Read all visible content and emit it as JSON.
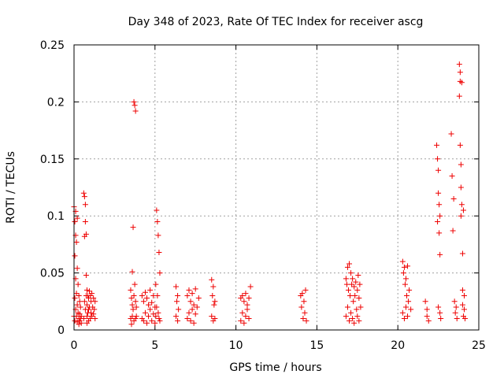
{
  "chart_data": {
    "type": "scatter",
    "title": "Day 348 of 2023, Rate Of TEC Index for receiver ascg",
    "xlabel": "GPS time / hours",
    "ylabel": "ROTI / TECUs",
    "xlim": [
      0,
      25
    ],
    "ylim": [
      0,
      0.25
    ],
    "xticks": [
      0,
      5,
      10,
      15,
      20,
      25
    ],
    "yticks": [
      0,
      0.05,
      0.1,
      0.15,
      0.2,
      0.25
    ],
    "xtick_labels": [
      "0",
      "5",
      "10",
      "15",
      "20",
      "25"
    ],
    "ytick_labels": [
      "0",
      "0.05",
      "0.1",
      "0.15",
      "0.2",
      "0.25"
    ],
    "grid": true,
    "marker": "+",
    "color": "#ee0000",
    "series": [
      {
        "name": "ROTI",
        "x": [
          0.0,
          0.0,
          0.05,
          0.05,
          0.05,
          0.05,
          0.1,
          0.1,
          0.1,
          0.1,
          0.15,
          0.15,
          0.15,
          0.2,
          0.2,
          0.2,
          0.2,
          0.25,
          0.25,
          0.3,
          0.3,
          0.3,
          0.35,
          0.35,
          0.35,
          0.4,
          0.4,
          0.45,
          0.45,
          0.6,
          0.6,
          0.65,
          0.65,
          0.65,
          0.7,
          0.7,
          0.7,
          0.75,
          0.75,
          0.75,
          0.8,
          0.8,
          0.8,
          0.8,
          0.85,
          0.85,
          0.9,
          0.9,
          0.9,
          0.95,
          0.95,
          1.0,
          1.0,
          1.05,
          1.05,
          1.1,
          1.1,
          1.15,
          1.2,
          1.2,
          1.25,
          1.3,
          1.3,
          3.5,
          3.5,
          3.55,
          3.55,
          3.6,
          3.6,
          3.6,
          3.65,
          3.65,
          3.7,
          3.7,
          3.7,
          3.75,
          3.75,
          3.8,
          3.8,
          3.8,
          3.85,
          3.85,
          4.2,
          4.2,
          4.3,
          4.3,
          4.4,
          4.4,
          4.5,
          4.5,
          4.6,
          4.6,
          4.7,
          4.7,
          4.8,
          4.8,
          4.9,
          4.9,
          5.0,
          5.0,
          5.05,
          5.05,
          5.1,
          5.1,
          5.15,
          5.15,
          5.2,
          5.2,
          5.25,
          5.25,
          5.3,
          5.3,
          6.3,
          6.3,
          6.35,
          6.4,
          6.4,
          6.45,
          7.0,
          7.0,
          7.1,
          7.1,
          7.2,
          7.2,
          7.3,
          7.3,
          7.4,
          7.4,
          7.5,
          7.5,
          7.6,
          7.7,
          8.5,
          8.5,
          8.55,
          8.6,
          8.6,
          8.65,
          8.7,
          8.7,
          10.3,
          10.3,
          10.4,
          10.4,
          10.5,
          10.5,
          10.6,
          10.6,
          10.7,
          10.7,
          10.8,
          10.8,
          10.9,
          14.0,
          14.05,
          14.1,
          14.15,
          14.2,
          14.25,
          14.3,
          14.35,
          16.8,
          16.8,
          16.85,
          16.9,
          16.9,
          16.95,
          17.0,
          17.0,
          17.05,
          17.1,
          17.1,
          17.15,
          17.2,
          17.2,
          17.25,
          17.3,
          17.3,
          17.35,
          17.4,
          17.45,
          17.5,
          17.5,
          17.55,
          17.6,
          17.6,
          17.65,
          17.7,
          20.3,
          20.3,
          20.35,
          20.4,
          20.4,
          20.45,
          20.5,
          20.5,
          20.55,
          20.6,
          20.6,
          20.65,
          20.7,
          20.8,
          21.7,
          21.8,
          21.8,
          21.9,
          22.4,
          22.45,
          22.45,
          22.5,
          22.5,
          22.5,
          22.55,
          22.55,
          22.6,
          22.6,
          22.6,
          22.65,
          23.3,
          23.35,
          23.4,
          23.45,
          23.5,
          23.55,
          23.6,
          23.65,
          23.8,
          23.8,
          23.85,
          23.85,
          23.85,
          23.9,
          23.9,
          23.9,
          23.95,
          23.95,
          24.0,
          24.0,
          24.0,
          24.05,
          24.05,
          24.1,
          24.1,
          24.15
        ],
        "y": [
          0.108,
          0.012,
          0.095,
          0.065,
          0.028,
          0.008,
          0.104,
          0.083,
          0.045,
          0.018,
          0.077,
          0.032,
          0.012,
          0.098,
          0.054,
          0.022,
          0.007,
          0.04,
          0.015,
          0.03,
          0.01,
          0.005,
          0.025,
          0.014,
          0.008,
          0.02,
          0.01,
          0.012,
          0.006,
          0.12,
          0.01,
          0.117,
          0.082,
          0.025,
          0.11,
          0.095,
          0.018,
          0.084,
          0.048,
          0.03,
          0.035,
          0.022,
          0.012,
          0.006,
          0.03,
          0.015,
          0.028,
          0.018,
          0.008,
          0.034,
          0.02,
          0.03,
          0.01,
          0.025,
          0.015,
          0.032,
          0.012,
          0.02,
          0.028,
          0.014,
          0.018,
          0.025,
          0.01,
          0.035,
          0.01,
          0.028,
          0.005,
          0.051,
          0.022,
          0.012,
          0.09,
          0.018,
          0.2,
          0.03,
          0.008,
          0.197,
          0.04,
          0.192,
          0.025,
          0.01,
          0.02,
          0.012,
          0.03,
          0.01,
          0.025,
          0.008,
          0.033,
          0.015,
          0.028,
          0.006,
          0.022,
          0.012,
          0.035,
          0.018,
          0.024,
          0.008,
          0.03,
          0.014,
          0.02,
          0.006,
          0.04,
          0.012,
          0.105,
          0.02,
          0.095,
          0.03,
          0.083,
          0.015,
          0.068,
          0.01,
          0.05,
          0.008,
          0.038,
          0.012,
          0.025,
          0.03,
          0.008,
          0.018,
          0.03,
          0.01,
          0.035,
          0.015,
          0.025,
          0.008,
          0.032,
          0.018,
          0.022,
          0.006,
          0.036,
          0.014,
          0.02,
          0.028,
          0.044,
          0.012,
          0.03,
          0.038,
          0.008,
          0.022,
          0.025,
          0.01,
          0.028,
          0.008,
          0.03,
          0.015,
          0.025,
          0.006,
          0.032,
          0.012,
          0.022,
          0.018,
          0.028,
          0.01,
          0.038,
          0.03,
          0.02,
          0.032,
          0.01,
          0.025,
          0.015,
          0.035,
          0.008,
          0.045,
          0.012,
          0.04,
          0.055,
          0.02,
          0.035,
          0.058,
          0.008,
          0.03,
          0.05,
          0.015,
          0.04,
          0.045,
          0.01,
          0.025,
          0.038,
          0.006,
          0.03,
          0.042,
          0.018,
          0.035,
          0.012,
          0.048,
          0.028,
          0.008,
          0.04,
          0.02,
          0.06,
          0.015,
          0.05,
          0.055,
          0.01,
          0.04,
          0.045,
          0.02,
          0.03,
          0.056,
          0.012,
          0.025,
          0.035,
          0.018,
          0.025,
          0.012,
          0.018,
          0.008,
          0.162,
          0.15,
          0.095,
          0.14,
          0.12,
          0.02,
          0.11,
          0.085,
          0.1,
          0.066,
          0.015,
          0.01,
          0.172,
          0.135,
          0.087,
          0.115,
          0.025,
          0.015,
          0.02,
          0.01,
          0.233,
          0.205,
          0.226,
          0.218,
          0.162,
          0.145,
          0.125,
          0.1,
          0.217,
          0.11,
          0.067,
          0.035,
          0.022,
          0.105,
          0.012,
          0.03,
          0.018,
          0.01
        ]
      }
    ]
  }
}
